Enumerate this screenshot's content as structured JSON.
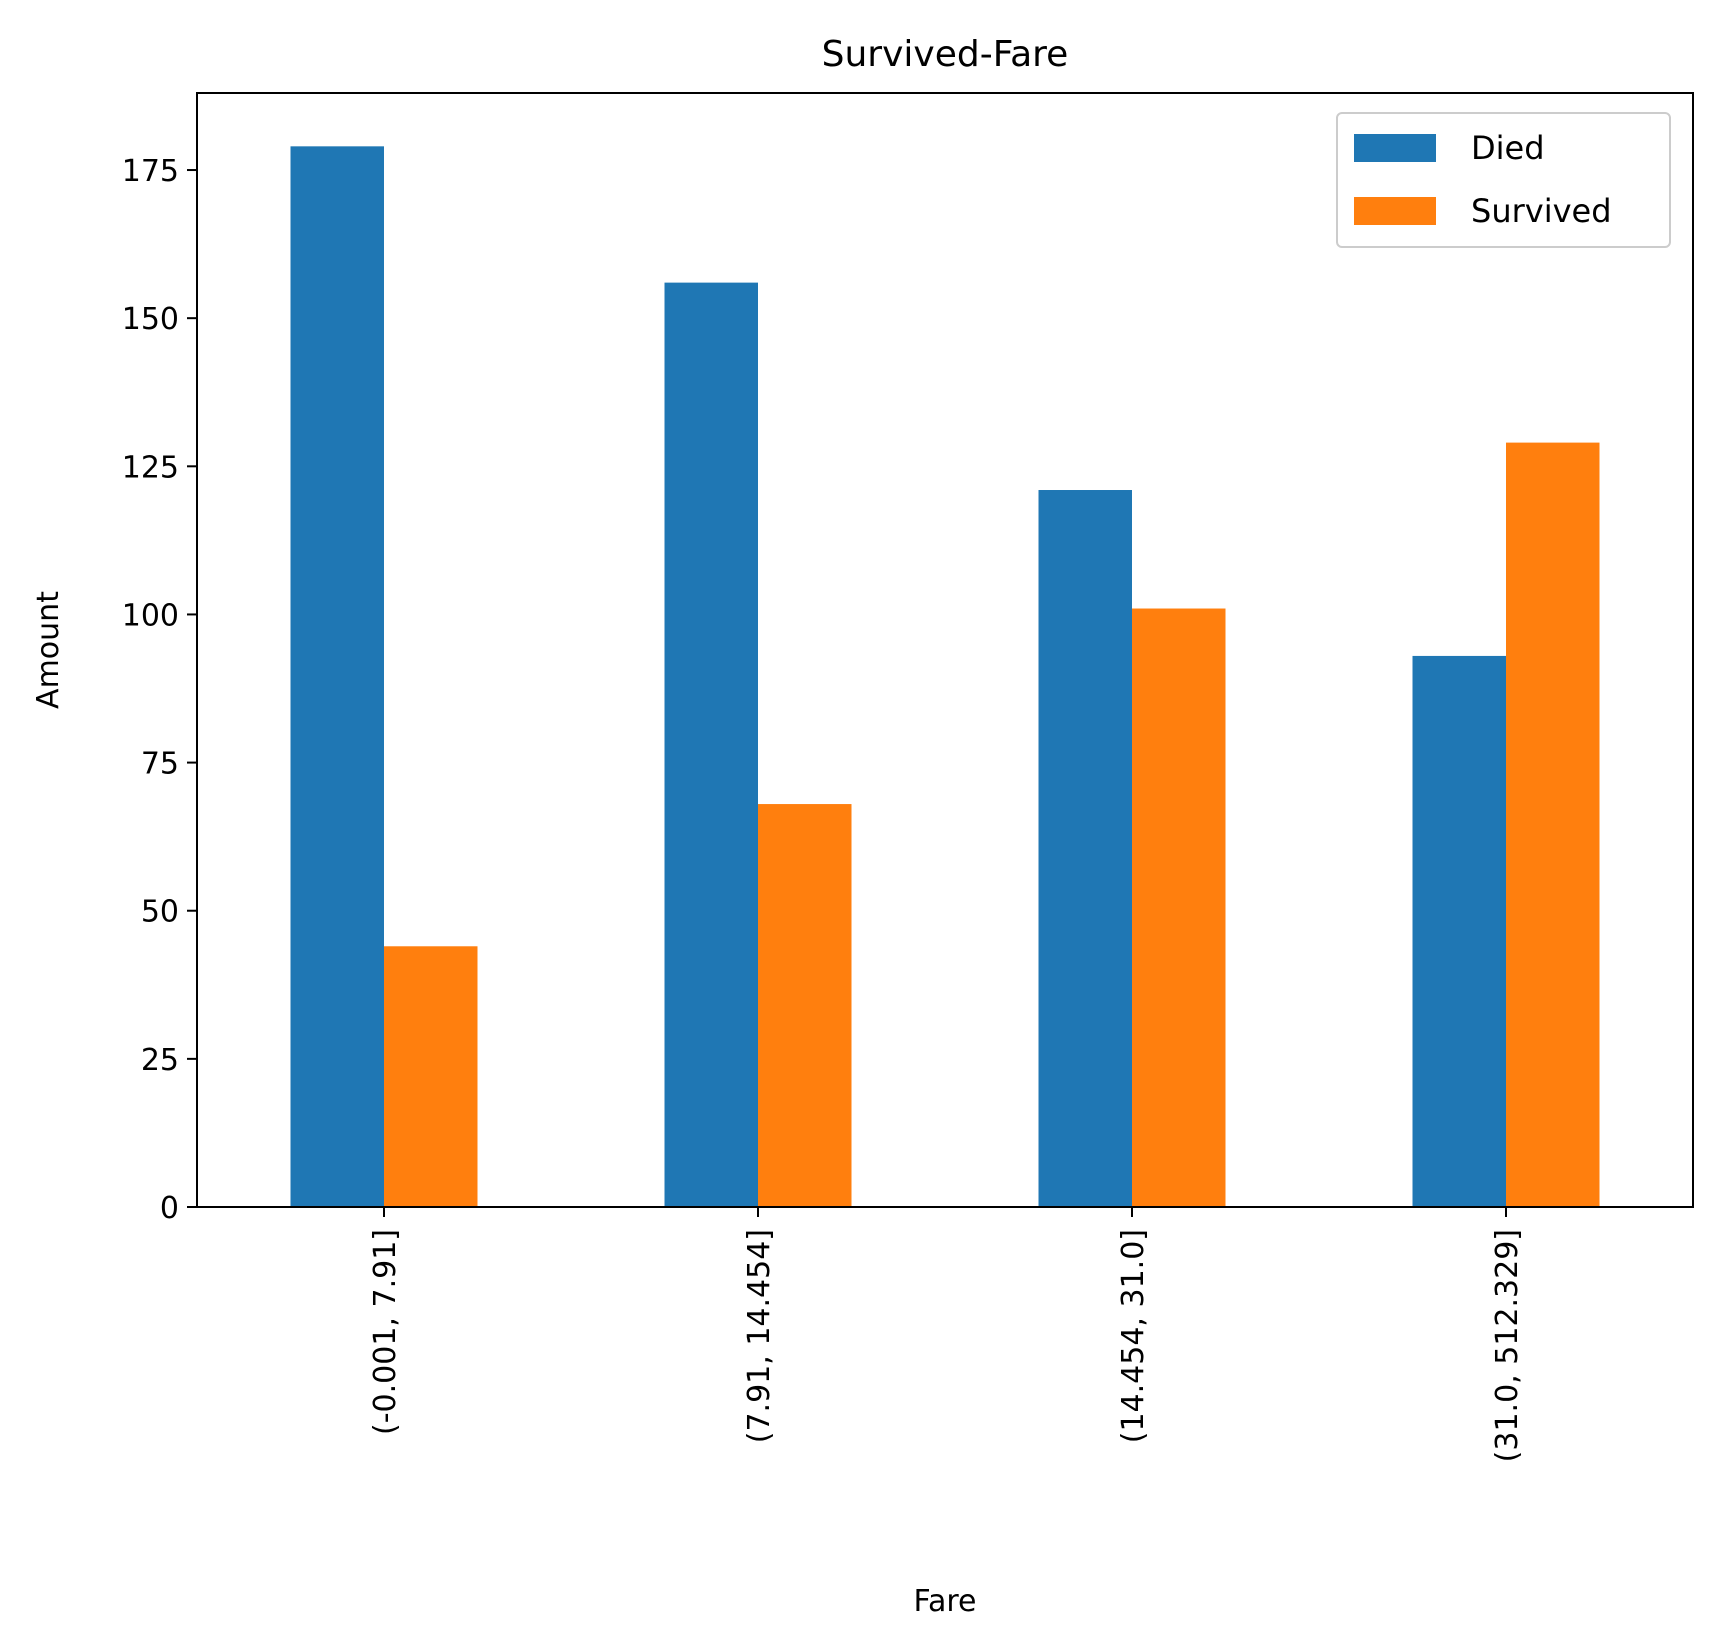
{
  "chart_data": {
    "type": "bar",
    "title": "Survived-Fare",
    "xlabel": "Fare",
    "ylabel": "Amount",
    "categories": [
      "(-0.001, 7.91]",
      "(7.91, 14.454]",
      "(14.454, 31.0]",
      "(31.0, 512.329]"
    ],
    "series": [
      {
        "name": "Died",
        "color": "#1f77b4",
        "values": [
          179,
          156,
          121,
          93
        ]
      },
      {
        "name": "Survived",
        "color": "#ff7f0e",
        "values": [
          44,
          68,
          101,
          129
        ]
      }
    ],
    "ylim": [
      0,
      188
    ],
    "yticks": [
      0,
      25,
      50,
      75,
      100,
      125,
      150,
      175
    ],
    "grid": false,
    "legend_position": "top-right"
  }
}
